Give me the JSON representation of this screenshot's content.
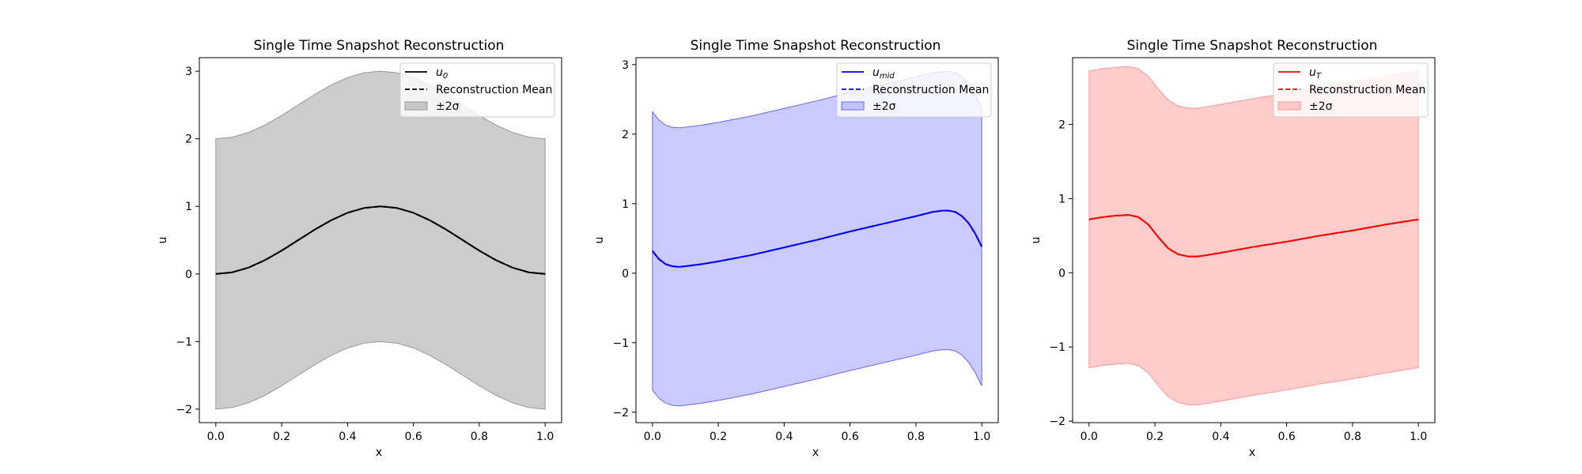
{
  "figure": {
    "panels": [
      {
        "title": "Single Time Snapshot Reconstruction",
        "legend": {
          "true_label": "u",
          "true_sub": "0",
          "mean_label": "Reconstruction Mean",
          "band_label": "±2σ"
        },
        "xlabel_text": "x",
        "ylabel_text": "u",
        "xtick_labels": [
          "0.0",
          "0.2",
          "0.4",
          "0.6",
          "0.8",
          "1.0"
        ],
        "ytick_labels": [
          "−2",
          "−1",
          "0",
          "1",
          "2",
          "3"
        ]
      },
      {
        "title": "Single Time Snapshot Reconstruction",
        "legend": {
          "true_label": "u",
          "true_sub": "mid",
          "mean_label": "Reconstruction Mean",
          "band_label": "±2σ"
        },
        "xlabel_text": "x",
        "ylabel_text": "u",
        "xtick_labels": [
          "0.0",
          "0.2",
          "0.4",
          "0.6",
          "0.8",
          "1.0"
        ],
        "ytick_labels": [
          "−2",
          "−1",
          "0",
          "1",
          "2",
          "3"
        ]
      },
      {
        "title": "Single Time Snapshot Reconstruction",
        "legend": {
          "true_label": "u",
          "true_sub": "T",
          "mean_label": "Reconstruction Mean",
          "band_label": "±2σ"
        },
        "xlabel_text": "x",
        "ylabel_text": "u",
        "xtick_labels": [
          "0.0",
          "0.2",
          "0.4",
          "0.6",
          "0.8",
          "1.0"
        ],
        "ytick_labels": [
          "−2",
          "−1",
          "0",
          "1",
          "2"
        ]
      }
    ]
  },
  "chart_data": [
    {
      "type": "line",
      "title": "Single Time Snapshot Reconstruction",
      "xlabel": "x",
      "ylabel": "u",
      "xlim": [
        -0.05,
        1.05
      ],
      "ylim": [
        -2.2,
        3.2
      ],
      "xticks": [
        0,
        0.2,
        0.4,
        0.6,
        0.8,
        1.0
      ],
      "yticks": [
        -2,
        -1,
        0,
        1,
        2,
        3
      ],
      "grid": false,
      "legend_position": "top-right",
      "color": "#000000",
      "band_color": "#999999",
      "x": [
        0,
        0.05,
        0.1,
        0.15,
        0.2,
        0.25,
        0.3,
        0.35,
        0.4,
        0.45,
        0.5,
        0.55,
        0.6,
        0.65,
        0.7,
        0.75,
        0.8,
        0.85,
        0.9,
        0.95,
        1.0
      ],
      "series": [
        {
          "name": "u_0",
          "role": "true",
          "style": "solid",
          "values": [
            0,
            0.024,
            0.095,
            0.206,
            0.345,
            0.5,
            0.655,
            0.794,
            0.905,
            0.976,
            1.0,
            0.976,
            0.905,
            0.794,
            0.655,
            0.5,
            0.345,
            0.206,
            0.095,
            0.024,
            0
          ]
        },
        {
          "name": "Reconstruction Mean",
          "role": "mean",
          "style": "dashed",
          "values": [
            0,
            0.024,
            0.095,
            0.206,
            0.345,
            0.5,
            0.655,
            0.794,
            0.905,
            0.976,
            1.0,
            0.976,
            0.905,
            0.794,
            0.655,
            0.5,
            0.345,
            0.206,
            0.095,
            0.024,
            0
          ]
        },
        {
          "name": "±2σ",
          "role": "band",
          "lower": [
            -2.0,
            -1.976,
            -1.905,
            -1.794,
            -1.655,
            -1.5,
            -1.345,
            -1.206,
            -1.095,
            -1.024,
            -1.0,
            -1.024,
            -1.095,
            -1.206,
            -1.345,
            -1.5,
            -1.655,
            -1.794,
            -1.905,
            -1.976,
            -2.0
          ],
          "upper": [
            2.0,
            2.024,
            2.095,
            2.206,
            2.345,
            2.5,
            2.655,
            2.794,
            2.905,
            2.976,
            3.0,
            2.976,
            2.905,
            2.794,
            2.655,
            2.5,
            2.345,
            2.206,
            2.095,
            2.024,
            2.0
          ]
        }
      ]
    },
    {
      "type": "line",
      "title": "Single Time Snapshot Reconstruction",
      "xlabel": "x",
      "ylabel": "u",
      "xlim": [
        -0.05,
        1.05
      ],
      "ylim": [
        -2.15,
        3.1
      ],
      "xticks": [
        0,
        0.2,
        0.4,
        0.6,
        0.8,
        1.0
      ],
      "yticks": [
        -2,
        -1,
        0,
        1,
        2,
        3
      ],
      "grid": false,
      "legend_position": "top-right",
      "color": "#0000ff",
      "band_color": "#6666ff",
      "x": [
        0,
        0.02,
        0.04,
        0.06,
        0.08,
        0.1,
        0.15,
        0.2,
        0.3,
        0.4,
        0.5,
        0.6,
        0.7,
        0.8,
        0.85,
        0.88,
        0.9,
        0.92,
        0.94,
        0.96,
        0.98,
        1.0
      ],
      "series": [
        {
          "name": "u_mid",
          "role": "true",
          "style": "solid",
          "values": [
            0.32,
            0.2,
            0.13,
            0.1,
            0.09,
            0.1,
            0.13,
            0.17,
            0.26,
            0.37,
            0.48,
            0.6,
            0.71,
            0.82,
            0.88,
            0.9,
            0.9,
            0.88,
            0.82,
            0.72,
            0.57,
            0.38
          ]
        },
        {
          "name": "Reconstruction Mean",
          "role": "mean",
          "style": "dashed",
          "values": [
            0.32,
            0.2,
            0.13,
            0.1,
            0.09,
            0.1,
            0.13,
            0.17,
            0.26,
            0.37,
            0.48,
            0.6,
            0.71,
            0.82,
            0.88,
            0.9,
            0.9,
            0.88,
            0.82,
            0.72,
            0.57,
            0.38
          ]
        },
        {
          "name": "±2σ",
          "role": "band",
          "lower": [
            -1.68,
            -1.8,
            -1.87,
            -1.9,
            -1.91,
            -1.9,
            -1.87,
            -1.83,
            -1.74,
            -1.63,
            -1.52,
            -1.4,
            -1.29,
            -1.18,
            -1.12,
            -1.1,
            -1.1,
            -1.12,
            -1.18,
            -1.28,
            -1.43,
            -1.62
          ],
          "upper": [
            2.32,
            2.2,
            2.13,
            2.1,
            2.09,
            2.1,
            2.13,
            2.17,
            2.26,
            2.37,
            2.48,
            2.6,
            2.71,
            2.82,
            2.88,
            2.9,
            2.9,
            2.88,
            2.82,
            2.72,
            2.57,
            2.38
          ]
        }
      ]
    },
    {
      "type": "line",
      "title": "Single Time Snapshot Reconstruction",
      "xlabel": "x",
      "ylabel": "u",
      "xlim": [
        -0.05,
        1.05
      ],
      "ylim": [
        -2.02,
        2.9
      ],
      "xticks": [
        0,
        0.2,
        0.4,
        0.6,
        0.8,
        1.0
      ],
      "yticks": [
        -2,
        -1,
        0,
        1,
        2
      ],
      "grid": false,
      "legend_position": "top-right",
      "color": "#ff0000",
      "band_color": "#ff9999",
      "x": [
        0,
        0.04,
        0.08,
        0.12,
        0.15,
        0.18,
        0.21,
        0.24,
        0.27,
        0.3,
        0.33,
        0.36,
        0.4,
        0.5,
        0.6,
        0.7,
        0.8,
        0.9,
        1.0
      ],
      "series": [
        {
          "name": "u_T",
          "role": "true",
          "style": "solid",
          "values": [
            0.72,
            0.75,
            0.77,
            0.78,
            0.75,
            0.65,
            0.48,
            0.33,
            0.25,
            0.22,
            0.22,
            0.24,
            0.27,
            0.35,
            0.42,
            0.5,
            0.57,
            0.65,
            0.72
          ]
        },
        {
          "name": "Reconstruction Mean",
          "role": "mean",
          "style": "dashed",
          "values": [
            0.72,
            0.75,
            0.77,
            0.78,
            0.75,
            0.65,
            0.48,
            0.33,
            0.25,
            0.22,
            0.22,
            0.24,
            0.27,
            0.35,
            0.42,
            0.5,
            0.57,
            0.65,
            0.72
          ]
        },
        {
          "name": "±2σ",
          "role": "band",
          "lower": [
            -1.28,
            -1.25,
            -1.23,
            -1.22,
            -1.25,
            -1.35,
            -1.52,
            -1.67,
            -1.75,
            -1.78,
            -1.78,
            -1.76,
            -1.73,
            -1.65,
            -1.58,
            -1.5,
            -1.43,
            -1.35,
            -1.28
          ],
          "upper": [
            2.72,
            2.75,
            2.77,
            2.78,
            2.75,
            2.65,
            2.48,
            2.33,
            2.25,
            2.22,
            2.22,
            2.24,
            2.27,
            2.35,
            2.42,
            2.5,
            2.57,
            2.65,
            2.72
          ]
        }
      ]
    }
  ]
}
